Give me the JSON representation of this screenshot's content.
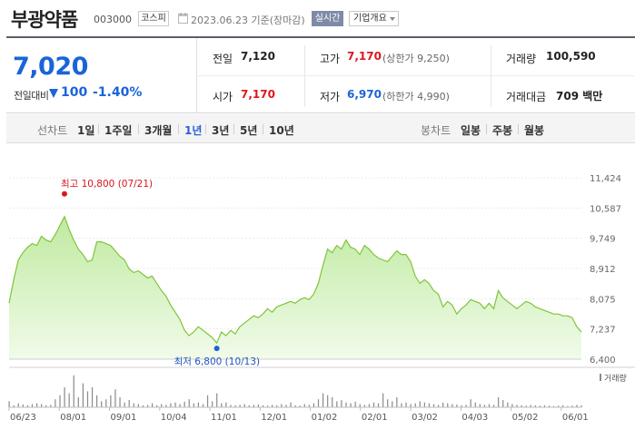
{
  "header": {
    "stock_name": "부광약품",
    "stock_code": "003000",
    "market": "코스피",
    "date": "2023.06.23",
    "basis": "기준(장마감)",
    "realtime_label": "실시간",
    "company_overview_label": "기업개요"
  },
  "price": {
    "current": "7,020",
    "change_label": "전일대비",
    "change_amount": "100",
    "change_pct": "-1.40%",
    "direction": "down"
  },
  "stats": {
    "prev_close": {
      "label": "전일",
      "value": "7,120"
    },
    "high": {
      "label": "고가",
      "value": "7,170",
      "sub": "(상한가 9,250)"
    },
    "volume": {
      "label": "거래량",
      "value": "100,590"
    },
    "open": {
      "label": "시가",
      "value": "7,170"
    },
    "low": {
      "label": "저가",
      "value": "6,970",
      "sub": "(하한가 4,990)"
    },
    "trade_value": {
      "label": "거래대금",
      "value": "709 백만"
    }
  },
  "tabs": {
    "line_chart_label": "선차트",
    "periods": [
      "1일",
      "1주일",
      "3개월",
      "1년",
      "3년",
      "5년",
      "10년"
    ],
    "selected_period": "1년",
    "candle_chart_label": "봉차트",
    "candle_periods": [
      "일봉",
      "주봉",
      "월봉"
    ]
  },
  "colors": {
    "up": "#e0161d",
    "down": "#1a64d8",
    "line": "#7fc53a",
    "fill_top": "#bfeaa0",
    "fill_bottom": "#f1fbea",
    "volume_bar": "#8a8a8a"
  },
  "chart_data": {
    "type": "area",
    "ylim": [
      6400,
      11424
    ],
    "y_ticks": [
      "11,424",
      "10,587",
      "9,749",
      "8,912",
      "8,075",
      "7,237",
      "6,400"
    ],
    "x_ticks": [
      "06/23",
      "08/01",
      "09/01",
      "10/04",
      "11/01",
      "12/01",
      "01/02",
      "02/01",
      "03/02",
      "04/03",
      "05/02",
      "06/01"
    ],
    "annotations": {
      "high": {
        "label": "최고",
        "value": "10,800",
        "date": "(07/21)"
      },
      "low": {
        "label": "최저",
        "value": "6,800",
        "date": "(10/13)"
      }
    },
    "volume_legend": "거래량",
    "x": [
      0,
      2,
      4,
      6,
      8,
      10,
      12,
      14,
      16,
      18,
      20,
      22,
      24,
      26,
      28,
      30,
      32,
      34,
      36,
      38,
      40,
      42,
      44,
      46,
      48,
      50,
      52,
      54,
      56,
      58,
      60,
      62,
      64,
      66,
      68,
      70,
      72,
      74,
      76,
      78,
      80,
      82,
      84,
      86,
      88,
      90,
      92,
      94,
      96,
      98,
      100,
      102,
      104,
      106,
      108,
      110,
      112,
      114,
      116,
      118,
      120,
      122,
      124,
      126,
      128,
      130,
      132,
      134,
      136,
      138,
      140,
      142,
      144,
      146,
      148,
      150,
      152,
      154,
      156,
      158,
      160,
      162,
      164,
      166,
      168,
      170,
      172,
      174,
      176,
      178,
      180,
      182,
      184,
      186,
      188,
      190,
      192,
      194,
      196,
      198,
      200,
      202,
      204,
      206,
      208,
      210,
      212,
      214,
      216,
      218,
      220,
      222,
      224,
      226,
      228,
      230,
      232,
      234,
      236,
      238,
      240,
      242,
      244,
      246,
      248
    ],
    "values": [
      7950,
      8600,
      9150,
      9350,
      9500,
      9600,
      9550,
      9800,
      9700,
      9650,
      9850,
      10100,
      10350,
      10000,
      9700,
      9450,
      9300,
      9100,
      9150,
      9650,
      9650,
      9600,
      9550,
      9400,
      9250,
      9150,
      8900,
      8800,
      8850,
      8750,
      8650,
      8700,
      8500,
      8300,
      8150,
      7900,
      7700,
      7500,
      7200,
      7050,
      7150,
      7300,
      7200,
      7100,
      7000,
      6850,
      7150,
      7050,
      7200,
      7100,
      7300,
      7400,
      7500,
      7600,
      7550,
      7650,
      7800,
      7700,
      7850,
      7900,
      7950,
      8000,
      7950,
      8050,
      8100,
      8050,
      8200,
      8500,
      9000,
      9450,
      9350,
      9550,
      9450,
      9700,
      9500,
      9450,
      9300,
      9550,
      9450,
      9300,
      9200,
      9150,
      9100,
      9250,
      9400,
      9300,
      9300,
      9100,
      8700,
      8500,
      8600,
      8500,
      8300,
      8200,
      7850,
      8000,
      7900,
      7650,
      7800,
      7900,
      8050,
      8000,
      7950,
      7800,
      7950,
      7800,
      8300,
      8100,
      8000,
      7900,
      7800,
      7900,
      8000,
      7950,
      7850,
      7800,
      7750,
      7700,
      7650,
      7650,
      7600,
      7600,
      7550,
      7300,
      7150
    ],
    "volume": [
      0.15,
      0.05,
      0.1,
      0.07,
      0.05,
      0.08,
      0.1,
      0.08,
      0.05,
      0.06,
      0.2,
      0.3,
      0.5,
      0.35,
      0.8,
      0.25,
      0.6,
      0.4,
      0.5,
      0.3,
      0.15,
      0.2,
      0.3,
      0.45,
      0.25,
      0.12,
      0.18,
      0.1,
      0.08,
      0.05,
      0.06,
      0.1,
      0.05,
      0.08,
      0.06,
      0.1,
      0.12,
      0.08,
      0.14,
      0.2,
      0.1,
      0.12,
      0.08,
      0.3,
      0.15,
      0.35,
      0.1,
      0.12,
      0.06,
      0.05,
      0.06,
      0.08,
      0.05,
      0.06,
      0.07,
      0.05,
      0.04,
      0.06,
      0.05,
      0.08,
      0.06,
      0.12,
      0.05,
      0.04,
      0.08,
      0.06,
      0.1,
      0.2,
      0.35,
      0.3,
      0.25,
      0.15,
      0.18,
      0.12,
      0.1,
      0.14,
      0.08,
      0.06,
      0.08,
      0.12,
      0.1,
      0.35,
      0.2,
      0.15,
      0.25,
      0.1,
      0.12,
      0.08,
      0.1,
      0.15,
      0.12,
      0.1,
      0.08,
      0.06,
      0.12,
      0.1,
      0.08,
      0.07,
      0.05,
      0.06,
      0.2,
      0.12,
      0.08,
      0.06,
      0.08,
      0.06,
      0.25,
      0.18,
      0.12,
      0.08,
      0.06,
      0.05,
      0.04,
      0.06,
      0.05,
      0.04,
      0.05,
      0.04,
      0.03,
      0.04,
      0.05,
      0.03,
      0.04,
      0.06,
      0.05
    ]
  }
}
